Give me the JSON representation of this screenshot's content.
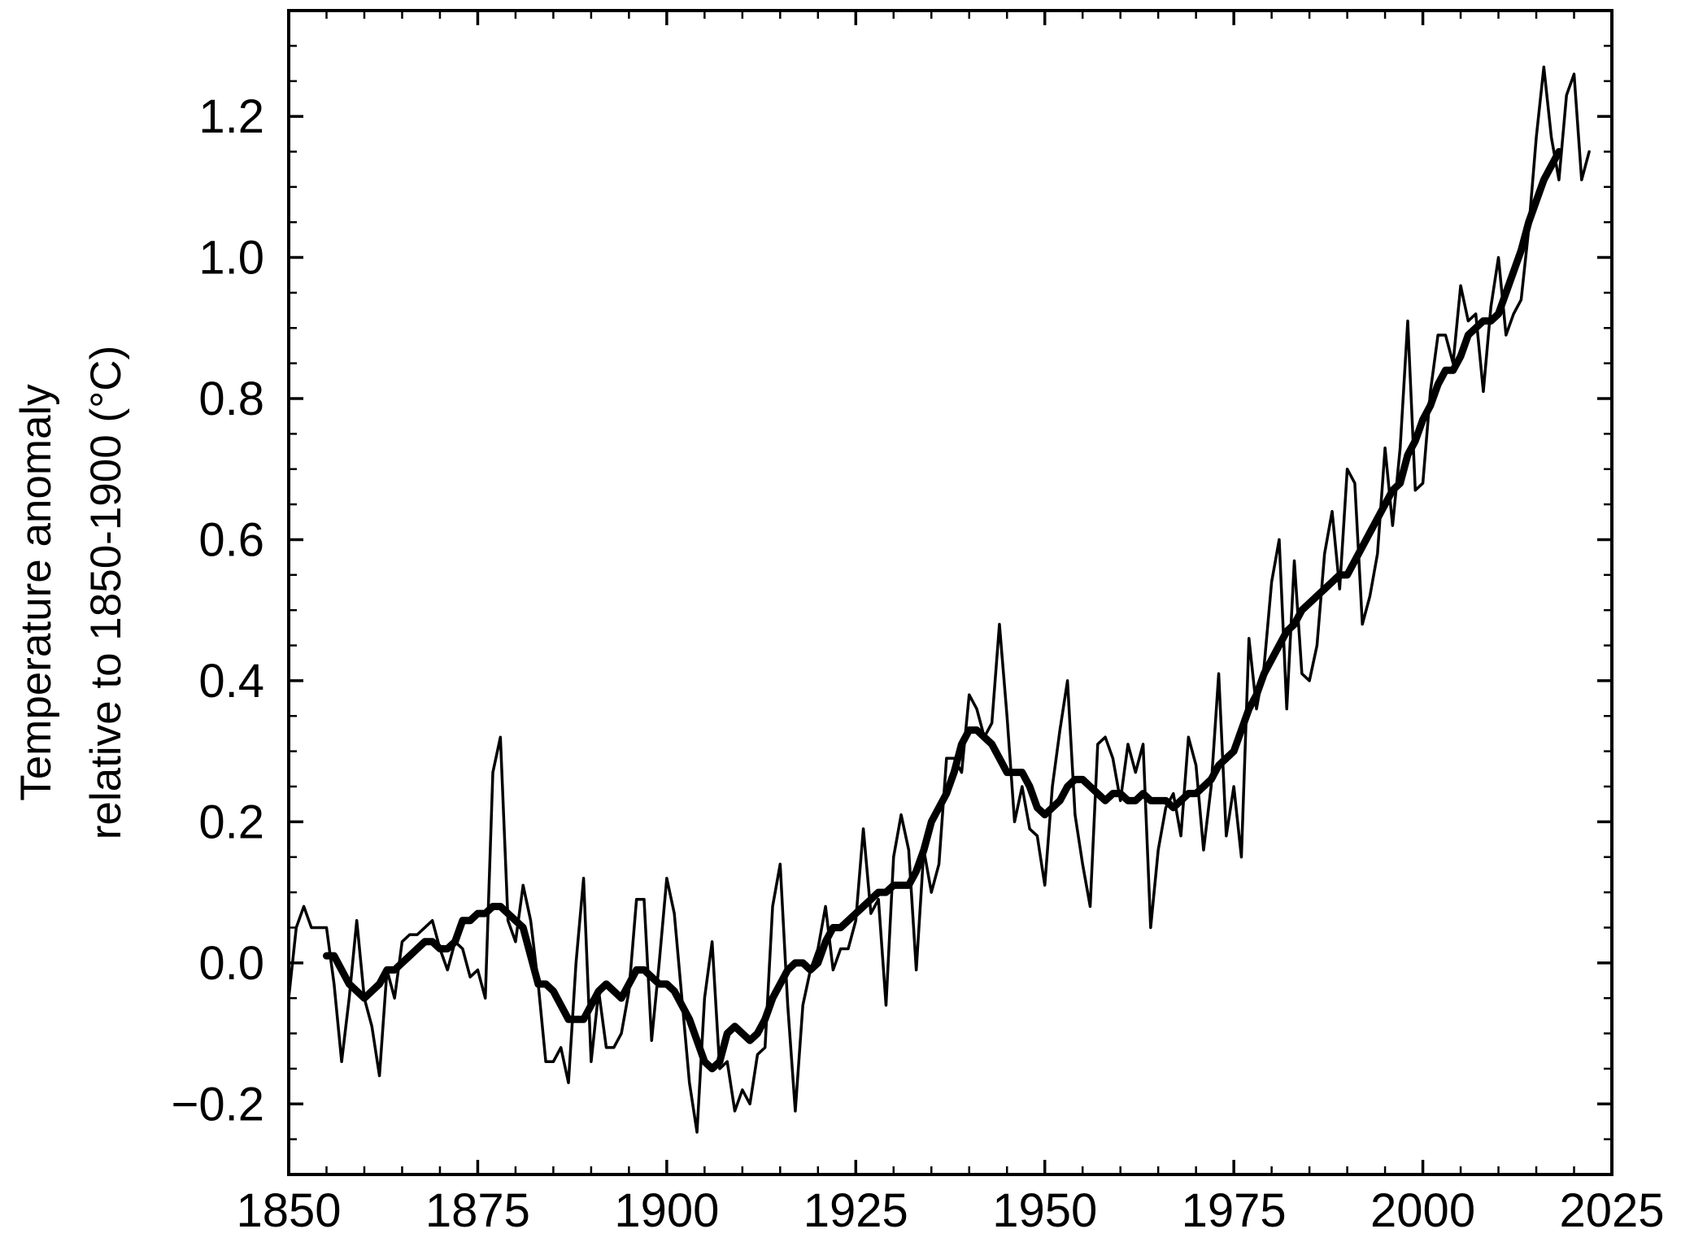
{
  "chart_data": {
    "type": "line",
    "ylabel": [
      "Temperature anomaly",
      "relative to 1850-1900 (°C)"
    ],
    "xlim": [
      1850,
      2025
    ],
    "ylim": [
      -0.3,
      1.35
    ],
    "xticks": [
      1850,
      1875,
      1900,
      1925,
      1950,
      1975,
      2000,
      2025
    ],
    "xminorticks": [
      1855,
      1860,
      1865,
      1870,
      1880,
      1885,
      1890,
      1895,
      1905,
      1910,
      1915,
      1920,
      1930,
      1935,
      1940,
      1945,
      1955,
      1960,
      1965,
      1970,
      1980,
      1985,
      1990,
      1995,
      2005,
      2010,
      2015,
      2020
    ],
    "yticks": [
      {
        "value": -0.2,
        "label": "−0.2"
      },
      {
        "value": 0,
        "label": "0.0"
      },
      0.2,
      0.4,
      0.6,
      0.8,
      {
        "value": 1,
        "label": "1.0"
      },
      1.2
    ],
    "yminorticks": [
      -0.25,
      -0.15,
      -0.1,
      -0.05,
      0.05,
      0.1,
      0.15,
      0.25,
      0.3,
      0.35,
      0.45,
      0.5,
      0.55,
      0.65,
      0.7,
      0.75,
      0.85,
      0.9,
      0.95,
      1.05,
      1.1,
      1.15,
      1.25,
      1.3,
      1.35
    ],
    "x": [
      1850,
      1851,
      1852,
      1853,
      1854,
      1855,
      1856,
      1857,
      1858,
      1859,
      1860,
      1861,
      1862,
      1863,
      1864,
      1865,
      1866,
      1867,
      1868,
      1869,
      1870,
      1871,
      1872,
      1873,
      1874,
      1875,
      1876,
      1877,
      1878,
      1879,
      1880,
      1881,
      1882,
      1883,
      1884,
      1885,
      1886,
      1887,
      1888,
      1889,
      1890,
      1891,
      1892,
      1893,
      1894,
      1895,
      1896,
      1897,
      1898,
      1899,
      1900,
      1901,
      1902,
      1903,
      1904,
      1905,
      1906,
      1907,
      1908,
      1909,
      1910,
      1911,
      1912,
      1913,
      1914,
      1915,
      1916,
      1917,
      1918,
      1919,
      1920,
      1921,
      1922,
      1923,
      1924,
      1925,
      1926,
      1927,
      1928,
      1929,
      1930,
      1931,
      1932,
      1933,
      1934,
      1935,
      1936,
      1937,
      1938,
      1939,
      1940,
      1941,
      1942,
      1943,
      1944,
      1945,
      1946,
      1947,
      1948,
      1949,
      1950,
      1951,
      1952,
      1953,
      1954,
      1955,
      1956,
      1957,
      1958,
      1959,
      1960,
      1961,
      1962,
      1963,
      1964,
      1965,
      1966,
      1967,
      1968,
      1969,
      1970,
      1971,
      1972,
      1973,
      1974,
      1975,
      1976,
      1977,
      1978,
      1979,
      1980,
      1981,
      1982,
      1983,
      1984,
      1985,
      1986,
      1987,
      1988,
      1989,
      1990,
      1991,
      1992,
      1993,
      1994,
      1995,
      1996,
      1997,
      1998,
      1999,
      2000,
      2001,
      2002,
      2003,
      2004,
      2005,
      2006,
      2007,
      2008,
      2009,
      2010,
      2011,
      2012,
      2013,
      2014,
      2015,
      2016,
      2017,
      2018,
      2019,
      2020,
      2021,
      2022
    ],
    "series": [
      {
        "color": "#000000",
        "values": [
          -0.05,
          0.05,
          0.08,
          0.05,
          0.05,
          0.05,
          -0.03,
          -0.14,
          -0.05,
          0.06,
          -0.05,
          -0.09,
          -0.16,
          -0.01,
          -0.05,
          0.03,
          0.04,
          0.04,
          0.05,
          0.06,
          0.02,
          -0.01,
          0.03,
          0.02,
          -0.02,
          -0.01,
          -0.05,
          0.27,
          0.32,
          0.06,
          0.03,
          0.11,
          0.06,
          -0.03,
          -0.14,
          -0.14,
          -0.12,
          -0.17,
          0.0,
          0.12,
          -0.14,
          -0.04,
          -0.12,
          -0.12,
          -0.1,
          -0.04,
          0.09,
          0.09,
          -0.11,
          0.0,
          0.12,
          0.07,
          -0.05,
          -0.17,
          -0.24,
          -0.05,
          0.03,
          -0.15,
          -0.14,
          -0.21,
          -0.18,
          -0.2,
          -0.13,
          -0.12,
          0.08,
          0.14,
          -0.06,
          -0.21,
          -0.06,
          -0.01,
          0.02,
          0.08,
          -0.01,
          0.02,
          0.02,
          0.06,
          0.19,
          0.07,
          0.09,
          -0.06,
          0.15,
          0.21,
          0.16,
          -0.01,
          0.16,
          0.1,
          0.14,
          0.29,
          0.29,
          0.27,
          0.38,
          0.36,
          0.32,
          0.34,
          0.48,
          0.35,
          0.2,
          0.25,
          0.19,
          0.18,
          0.11,
          0.25,
          0.33,
          0.4,
          0.21,
          0.14,
          0.08,
          0.31,
          0.32,
          0.29,
          0.23,
          0.31,
          0.27,
          0.31,
          0.05,
          0.16,
          0.22,
          0.24,
          0.18,
          0.32,
          0.28,
          0.16,
          0.25,
          0.41,
          0.18,
          0.25,
          0.15,
          0.46,
          0.36,
          0.42,
          0.54,
          0.6,
          0.36,
          0.57,
          0.41,
          0.4,
          0.45,
          0.58,
          0.64,
          0.53,
          0.7,
          0.68,
          0.48,
          0.52,
          0.58,
          0.73,
          0.62,
          0.73,
          0.91,
          0.67,
          0.68,
          0.81,
          0.89,
          0.89,
          0.85,
          0.96,
          0.91,
          0.92,
          0.81,
          0.93,
          1.0,
          0.89,
          0.92,
          0.94,
          1.04,
          1.17,
          1.27,
          1.17,
          1.11,
          1.23,
          1.26,
          1.11,
          1.15
        ]
      },
      {
        "color": "#000000",
        "values": [
          null,
          null,
          null,
          null,
          null,
          0.01,
          0.01,
          -0.01,
          -0.03,
          -0.04,
          -0.05,
          -0.04,
          -0.03,
          -0.01,
          -0.01,
          0.0,
          0.01,
          0.02,
          0.03,
          0.03,
          0.02,
          0.02,
          0.03,
          0.06,
          0.06,
          0.07,
          0.07,
          0.08,
          0.08,
          0.07,
          0.06,
          0.05,
          0.01,
          -0.03,
          -0.03,
          -0.04,
          -0.06,
          -0.08,
          -0.08,
          -0.08,
          -0.06,
          -0.04,
          -0.03,
          -0.04,
          -0.05,
          -0.03,
          -0.01,
          -0.01,
          -0.02,
          -0.03,
          -0.03,
          -0.04,
          -0.06,
          -0.08,
          -0.11,
          -0.14,
          -0.15,
          -0.14,
          -0.1,
          -0.09,
          -0.1,
          -0.11,
          -0.1,
          -0.08,
          -0.05,
          -0.03,
          -0.01,
          0.0,
          0.0,
          -0.01,
          0.0,
          0.03,
          0.05,
          0.05,
          0.06,
          0.07,
          0.08,
          0.09,
          0.1,
          0.1,
          0.11,
          0.11,
          0.11,
          0.13,
          0.16,
          0.2,
          0.22,
          0.24,
          0.27,
          0.31,
          0.33,
          0.33,
          0.32,
          0.31,
          0.29,
          0.27,
          0.27,
          0.27,
          0.25,
          0.22,
          0.21,
          0.22,
          0.23,
          0.25,
          0.26,
          0.26,
          0.25,
          0.24,
          0.23,
          0.24,
          0.24,
          0.23,
          0.23,
          0.24,
          0.23,
          0.23,
          0.23,
          0.22,
          0.23,
          0.24,
          0.24,
          0.25,
          0.26,
          0.28,
          0.29,
          0.3,
          0.33,
          0.36,
          0.38,
          0.41,
          0.43,
          0.45,
          0.47,
          0.48,
          0.5,
          0.51,
          0.52,
          0.53,
          0.54,
          0.55,
          0.55,
          0.57,
          0.59,
          0.61,
          0.63,
          0.65,
          0.67,
          0.68,
          0.72,
          0.74,
          0.77,
          0.79,
          0.82,
          0.84,
          0.84,
          0.86,
          0.89,
          0.9,
          0.91,
          0.91,
          0.92,
          0.95,
          0.98,
          1.01,
          1.05,
          1.08,
          1.11,
          1.13,
          1.15,
          null,
          null,
          null,
          null
        ]
      }
    ]
  }
}
